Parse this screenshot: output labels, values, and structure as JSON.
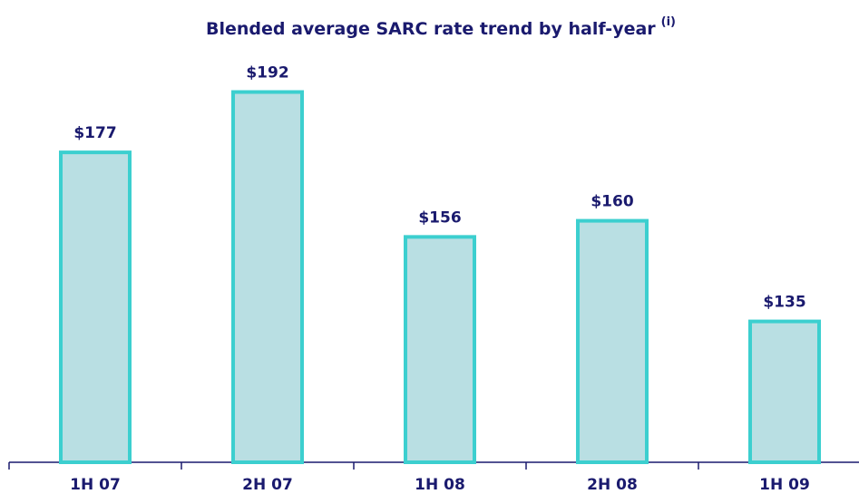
{
  "chart_data": {
    "type": "bar",
    "title": "Blended average SARC rate trend by half-year",
    "title_note": "(i)",
    "categories": [
      "1H 07",
      "2H 07",
      "1H 08",
      "2H 08",
      "1H 09"
    ],
    "values": [
      177,
      192,
      156,
      160,
      135
    ],
    "value_labels": [
      "$177",
      "$192",
      "$156",
      "$160",
      "$135"
    ],
    "color": "#b9dfe3",
    "edge_color": "#3ccfcf",
    "ylim": [
      100,
      200
    ]
  }
}
